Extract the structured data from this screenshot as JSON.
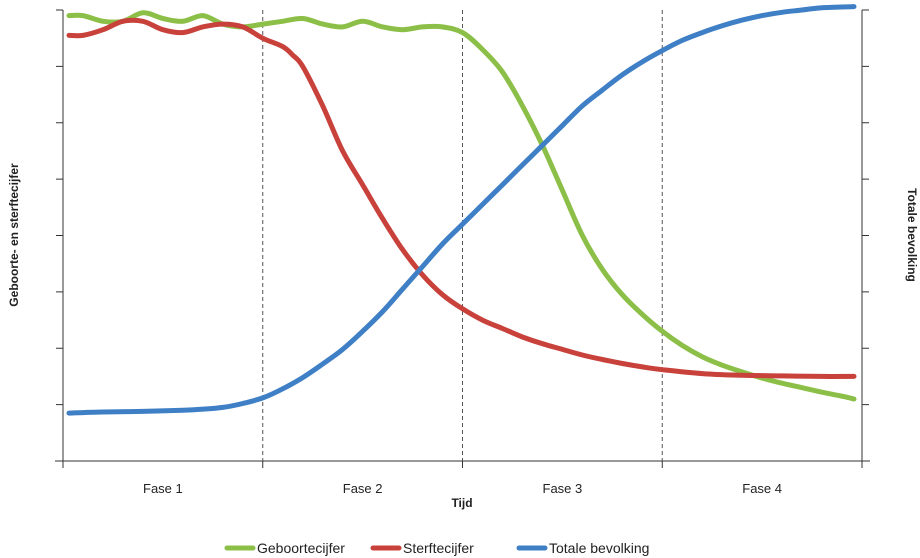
{
  "chart_data": {
    "type": "line",
    "title": "",
    "xlabel": "Tijd",
    "ylabel_left": "Geboorte- en sterftecijfer",
    "ylabel_right": "Totale bevolking",
    "xlim": [
      0,
      4
    ],
    "ylim": [
      0,
      8
    ],
    "phases": [
      "Fase 1",
      "Fase 2",
      "Fase 3",
      "Fase 4"
    ],
    "phase_boundaries": [
      1,
      2,
      3
    ],
    "grid": false,
    "legend_position": "bottom",
    "series": [
      {
        "name": "Geboortecijfer",
        "color": "#8cbf47",
        "x": [
          0.03,
          0.1,
          0.2,
          0.3,
          0.4,
          0.5,
          0.6,
          0.7,
          0.8,
          0.9,
          1.0,
          1.1,
          1.2,
          1.3,
          1.4,
          1.5,
          1.6,
          1.7,
          1.8,
          1.9,
          2.0,
          2.1,
          2.2,
          2.3,
          2.4,
          2.5,
          2.6,
          2.7,
          2.8,
          2.9,
          3.0,
          3.1,
          3.2,
          3.3,
          3.4,
          3.5,
          3.6,
          3.7,
          3.8,
          3.9,
          3.96
        ],
        "y": [
          7.9,
          7.9,
          7.8,
          7.8,
          7.95,
          7.85,
          7.8,
          7.9,
          7.75,
          7.7,
          7.75,
          7.8,
          7.85,
          7.75,
          7.7,
          7.8,
          7.7,
          7.65,
          7.7,
          7.7,
          7.6,
          7.3,
          6.9,
          6.3,
          5.6,
          4.8,
          4.0,
          3.4,
          2.95,
          2.6,
          2.3,
          2.05,
          1.85,
          1.7,
          1.58,
          1.47,
          1.38,
          1.3,
          1.22,
          1.15,
          1.1
        ]
      },
      {
        "name": "Sterftecijfer",
        "color": "#c8413b",
        "x": [
          0.03,
          0.1,
          0.2,
          0.3,
          0.4,
          0.5,
          0.6,
          0.7,
          0.8,
          0.9,
          1.0,
          1.1,
          1.15,
          1.2,
          1.3,
          1.4,
          1.5,
          1.6,
          1.7,
          1.8,
          1.9,
          2.0,
          2.1,
          2.2,
          2.3,
          2.4,
          2.5,
          2.6,
          2.7,
          2.8,
          2.9,
          3.0,
          3.2,
          3.4,
          3.6,
          3.8,
          3.96
        ],
        "y": [
          7.55,
          7.55,
          7.65,
          7.8,
          7.8,
          7.65,
          7.6,
          7.7,
          7.75,
          7.7,
          7.5,
          7.35,
          7.2,
          7.0,
          6.3,
          5.5,
          4.9,
          4.3,
          3.75,
          3.3,
          2.95,
          2.7,
          2.5,
          2.35,
          2.2,
          2.08,
          1.98,
          1.88,
          1.8,
          1.73,
          1.67,
          1.62,
          1.55,
          1.52,
          1.51,
          1.5,
          1.5
        ]
      },
      {
        "name": "Totale bevolking",
        "color": "#3f7fc6",
        "x": [
          0.03,
          0.2,
          0.4,
          0.6,
          0.7,
          0.8,
          0.9,
          1.0,
          1.1,
          1.2,
          1.3,
          1.4,
          1.5,
          1.6,
          1.7,
          1.8,
          1.9,
          2.0,
          2.1,
          2.2,
          2.3,
          2.4,
          2.5,
          2.6,
          2.7,
          2.8,
          2.9,
          3.0,
          3.1,
          3.2,
          3.3,
          3.4,
          3.5,
          3.6,
          3.7,
          3.8,
          3.96
        ],
        "y": [
          0.85,
          0.87,
          0.88,
          0.9,
          0.92,
          0.95,
          1.02,
          1.12,
          1.28,
          1.48,
          1.72,
          1.98,
          2.3,
          2.65,
          3.05,
          3.45,
          3.85,
          4.2,
          4.55,
          4.9,
          5.25,
          5.6,
          5.95,
          6.3,
          6.58,
          6.85,
          7.08,
          7.28,
          7.46,
          7.6,
          7.72,
          7.82,
          7.9,
          7.96,
          8.0,
          8.04,
          8.06
        ]
      }
    ]
  }
}
